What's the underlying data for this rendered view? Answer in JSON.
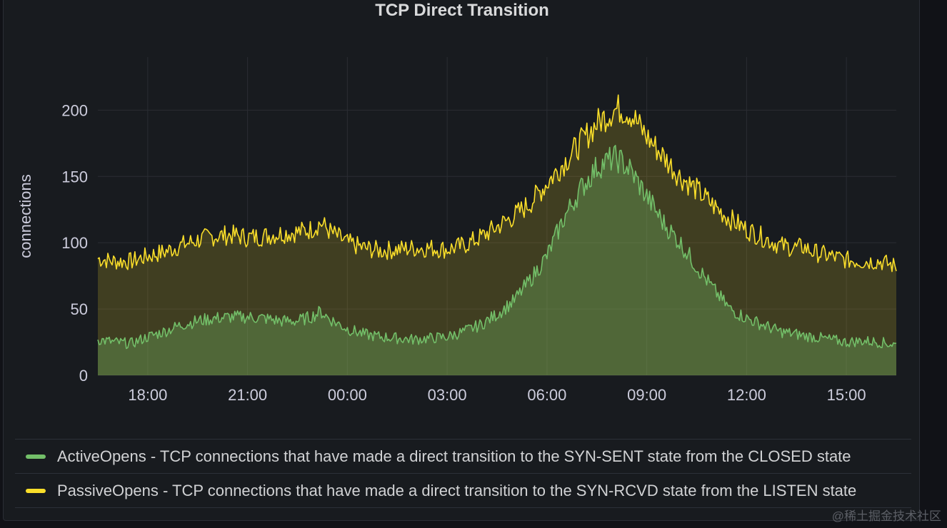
{
  "panel": {
    "title": "TCP Direct Transition"
  },
  "chart_data": {
    "type": "area",
    "title": "TCP Direct Transition",
    "ylabel": "connections",
    "xlabel": "",
    "ylim": [
      0,
      240
    ],
    "yticks": [
      0,
      50,
      100,
      150,
      200
    ],
    "xlim_hours": [
      16.5,
      40.5
    ],
    "xticks": [
      {
        "hour": 18,
        "label": "18:00"
      },
      {
        "hour": 21,
        "label": "21:00"
      },
      {
        "hour": 24,
        "label": "00:00"
      },
      {
        "hour": 27,
        "label": "03:00"
      },
      {
        "hour": 30,
        "label": "06:00"
      },
      {
        "hour": 33,
        "label": "09:00"
      },
      {
        "hour": 36,
        "label": "12:00"
      },
      {
        "hour": 39,
        "label": "15:00"
      }
    ],
    "grid": true,
    "legend_position": "bottom",
    "series": [
      {
        "name": "ActiveOpens - TCP connections that have made a direct transition to the SYN-SENT state from the CLOSED state",
        "color": "#73bf69",
        "x": [
          16.5,
          17.0,
          17.5,
          18.0,
          18.5,
          19.0,
          19.5,
          20.0,
          20.5,
          21.0,
          21.5,
          22.0,
          22.5,
          22.9,
          23.2,
          23.5,
          24.0,
          24.5,
          25.0,
          25.5,
          26.0,
          26.5,
          27.0,
          27.5,
          28.0,
          28.5,
          29.0,
          29.5,
          30.0,
          30.5,
          31.0,
          31.5,
          32.0,
          32.2,
          32.5,
          33.0,
          33.5,
          34.0,
          34.5,
          35.0,
          35.5,
          36.0,
          36.5,
          37.0,
          37.5,
          37.7,
          38.0,
          38.5,
          39.0,
          39.5,
          40.0,
          40.5
        ],
        "y": [
          27,
          25,
          24,
          29,
          33,
          38,
          41,
          43,
          44,
          44,
          43,
          41,
          41,
          44,
          48,
          42,
          35,
          31,
          29,
          28,
          27,
          28,
          29,
          33,
          38,
          46,
          56,
          72,
          90,
          118,
          140,
          157,
          164,
          162,
          155,
          135,
          115,
          100,
          82,
          65,
          50,
          43,
          38,
          33,
          31,
          30,
          29,
          27,
          25,
          26,
          25,
          23
        ]
      },
      {
        "name": "PassiveOpens - TCP connections that have made a direct transition to the SYN-RCVD state from the LISTEN state",
        "color": "#fade2a",
        "x": [
          16.5,
          17.0,
          17.5,
          18.0,
          18.5,
          19.0,
          19.5,
          20.0,
          20.5,
          21.0,
          21.5,
          22.0,
          22.5,
          22.9,
          23.2,
          23.5,
          24.0,
          24.5,
          25.0,
          25.5,
          26.0,
          26.5,
          27.0,
          27.5,
          28.0,
          28.5,
          29.0,
          29.5,
          30.0,
          30.5,
          31.0,
          31.5,
          32.0,
          32.2,
          32.5,
          33.0,
          33.5,
          34.0,
          34.5,
          35.0,
          35.5,
          36.0,
          36.5,
          37.0,
          37.5,
          37.7,
          38.0,
          38.5,
          39.0,
          39.5,
          40.0,
          40.5
        ],
        "y": [
          88,
          86,
          86,
          90,
          93,
          98,
          102,
          105,
          106,
          104,
          105,
          107,
          108,
          110,
          115,
          108,
          100,
          96,
          94,
          95,
          96,
          96,
          95,
          98,
          104,
          112,
          120,
          130,
          145,
          160,
          175,
          190,
          200,
          201,
          198,
          180,
          165,
          150,
          140,
          128,
          118,
          110,
          104,
          98,
          96,
          97,
          93,
          90,
          87,
          86,
          86,
          82
        ]
      }
    ]
  },
  "legend": [
    {
      "color": "#73bf69",
      "label": "ActiveOpens - TCP connections that have made a direct transition to the SYN-SENT state from the CLOSED state"
    },
    {
      "color": "#fade2a",
      "label": "PassiveOpens - TCP connections that have made a direct transition to the SYN-RCVD state from the LISTEN state"
    }
  ],
  "watermark": "@稀土掘金技术社区"
}
